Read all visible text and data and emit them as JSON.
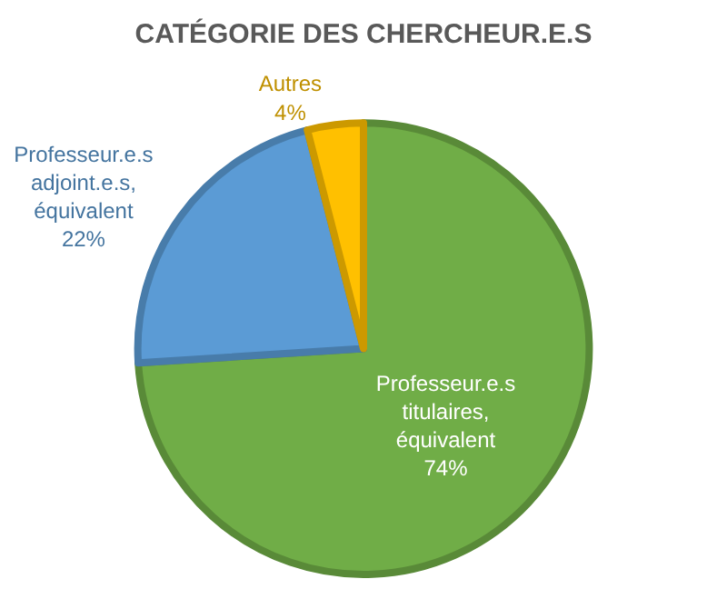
{
  "chart_data": {
    "type": "pie",
    "title": "CATÉGORIE DES CHERCHEUR.E.S",
    "categories": [
      "Professeur.e.s titulaires, équivalent",
      "Professeur.e.s adjoint.e.s, équivalent",
      "Autres"
    ],
    "values": [
      74,
      22,
      4
    ],
    "value_labels": [
      "74%",
      "22%",
      "4%"
    ],
    "colors": [
      "#70ad47",
      "#5b9bd5",
      "#ffc000"
    ],
    "legend": false
  }
}
